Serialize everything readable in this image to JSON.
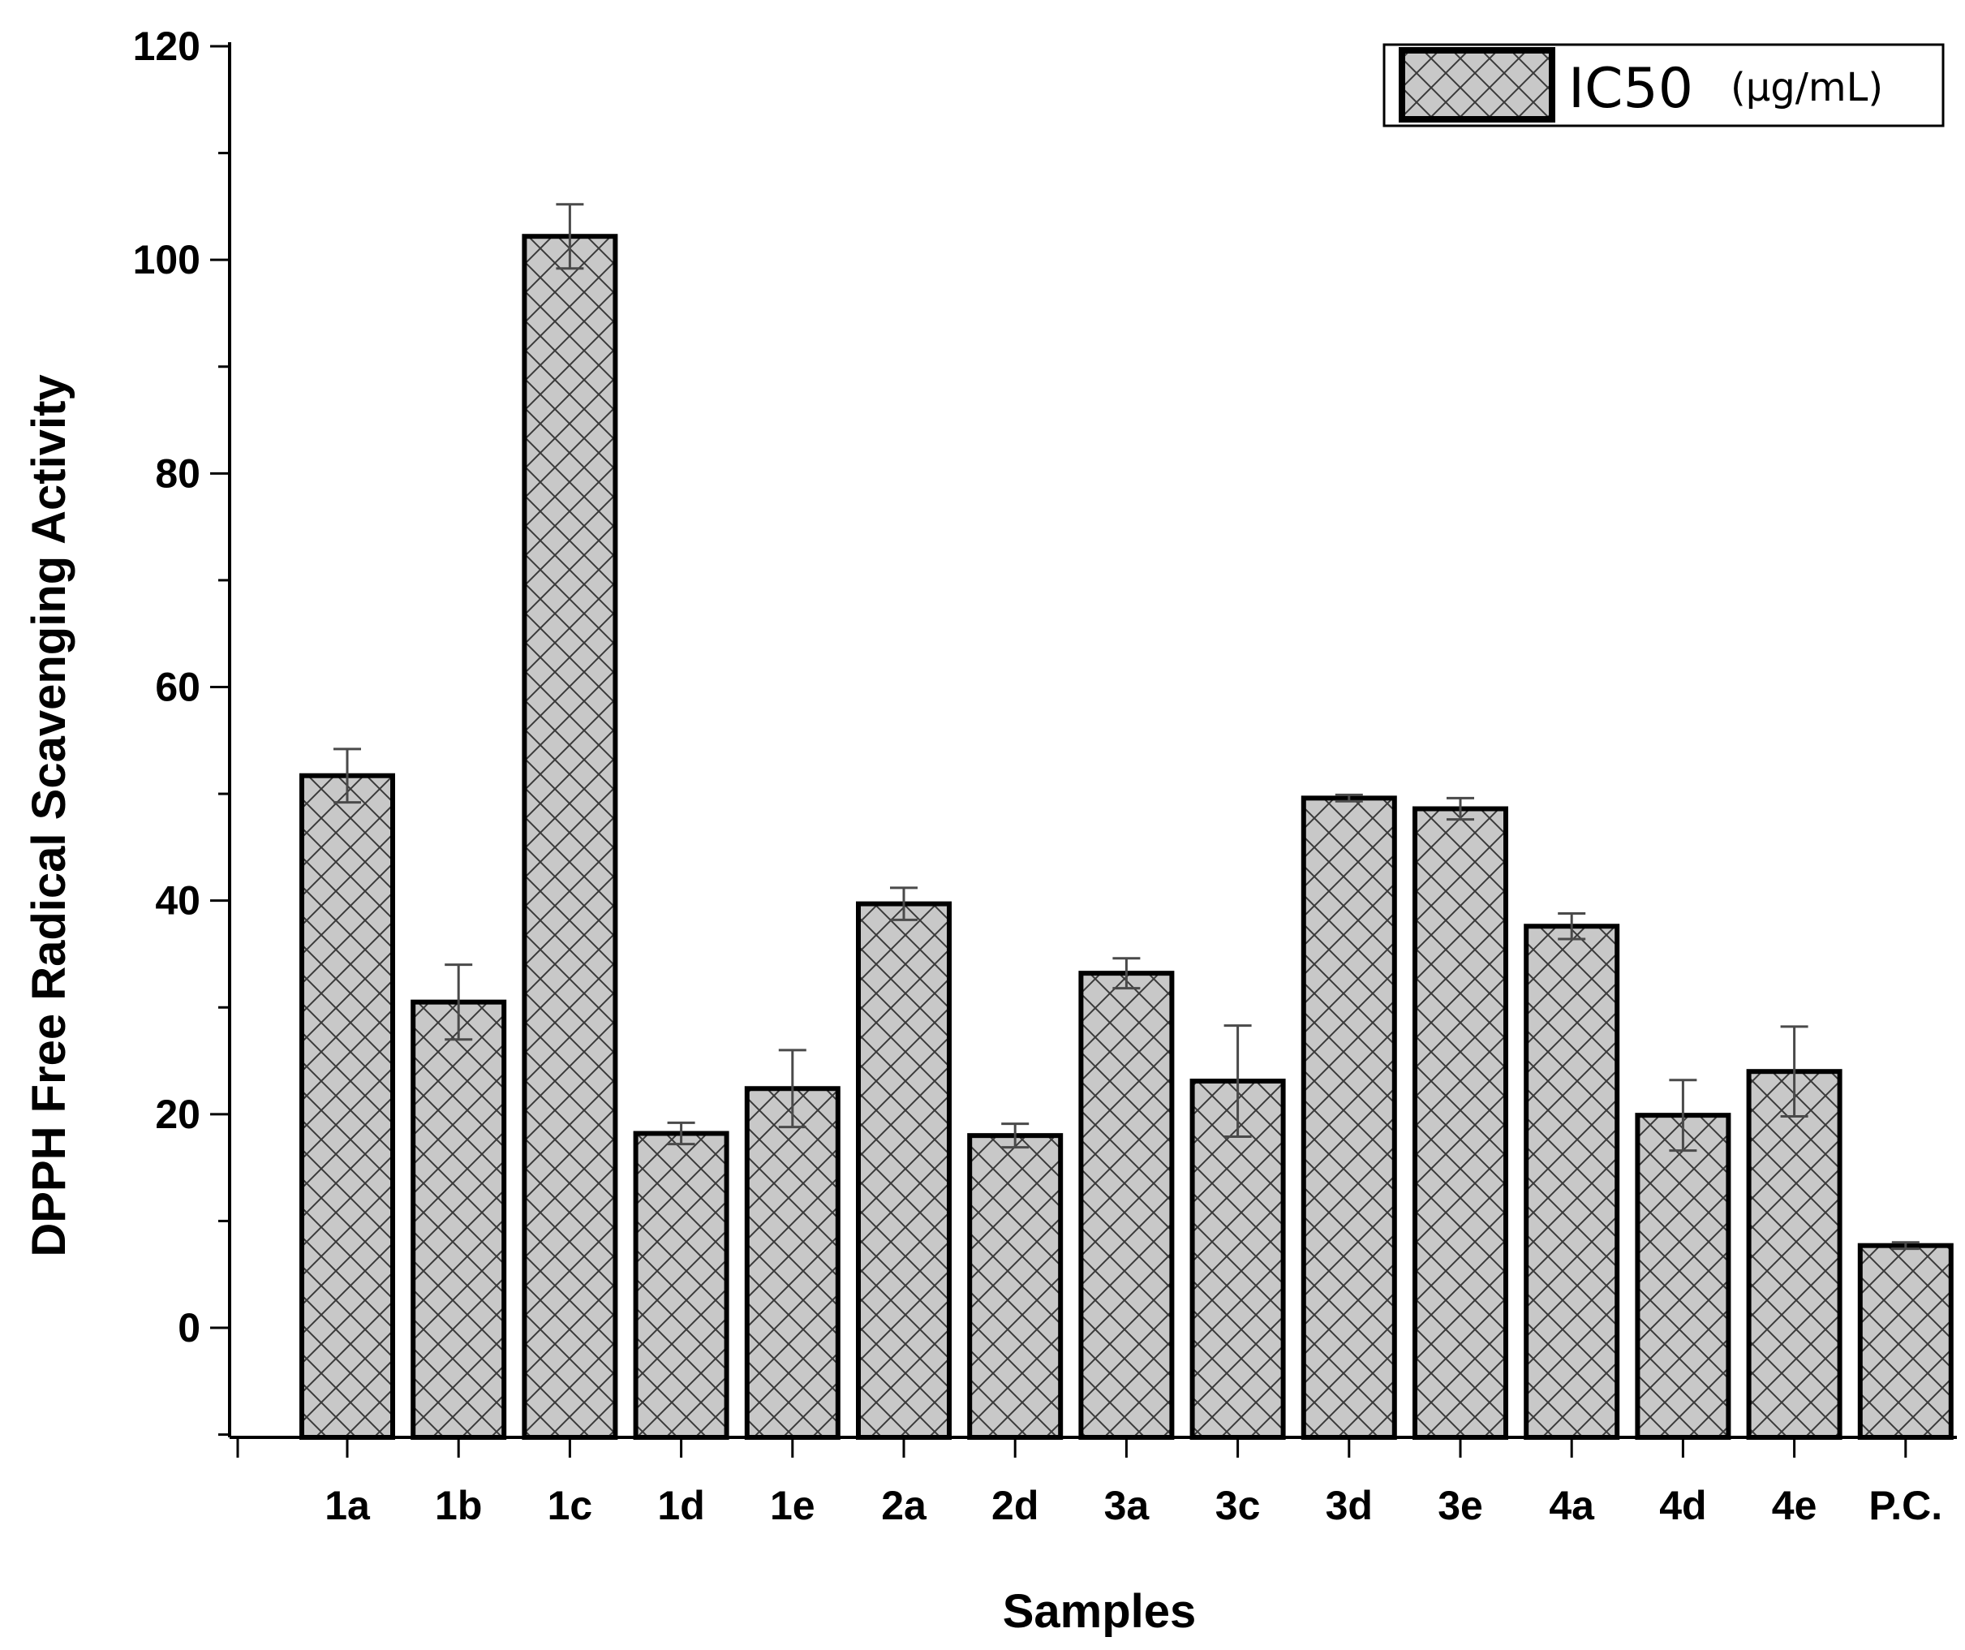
{
  "chart_data": {
    "type": "bar",
    "title": "",
    "xlabel": "Samples",
    "ylabel": "DPPH Free Radical Scavenging Activity",
    "ylim": [
      -10,
      120
    ],
    "yticks": [
      0,
      20,
      40,
      60,
      80,
      100,
      120
    ],
    "grid": false,
    "legend": {
      "position": "top-right",
      "label": "IC50",
      "unit": "(μg/mL)"
    },
    "categories": [
      "1a",
      "1b",
      "1c",
      "1d",
      "1e",
      "2a",
      "2d",
      "3a",
      "3c",
      "3d",
      "3e",
      "4a",
      "4d",
      "4e",
      "P.C."
    ],
    "series": [
      {
        "name": "IC50",
        "values": [
          51.7,
          30.5,
          102.2,
          18.2,
          22.4,
          39.7,
          18.0,
          33.2,
          23.1,
          49.6,
          48.6,
          37.6,
          19.9,
          24.0,
          7.7
        ],
        "errors": [
          2.5,
          3.5,
          3.0,
          1.0,
          3.6,
          1.5,
          1.1,
          1.4,
          5.2,
          0.3,
          1.0,
          1.2,
          3.3,
          4.2,
          0.3
        ]
      }
    ],
    "colors": {
      "bar_fill": "#c8c8c8",
      "bar_stroke": "#000000",
      "hatch": "#3a3a3a",
      "error_bar": "#4a4a4a"
    }
  }
}
